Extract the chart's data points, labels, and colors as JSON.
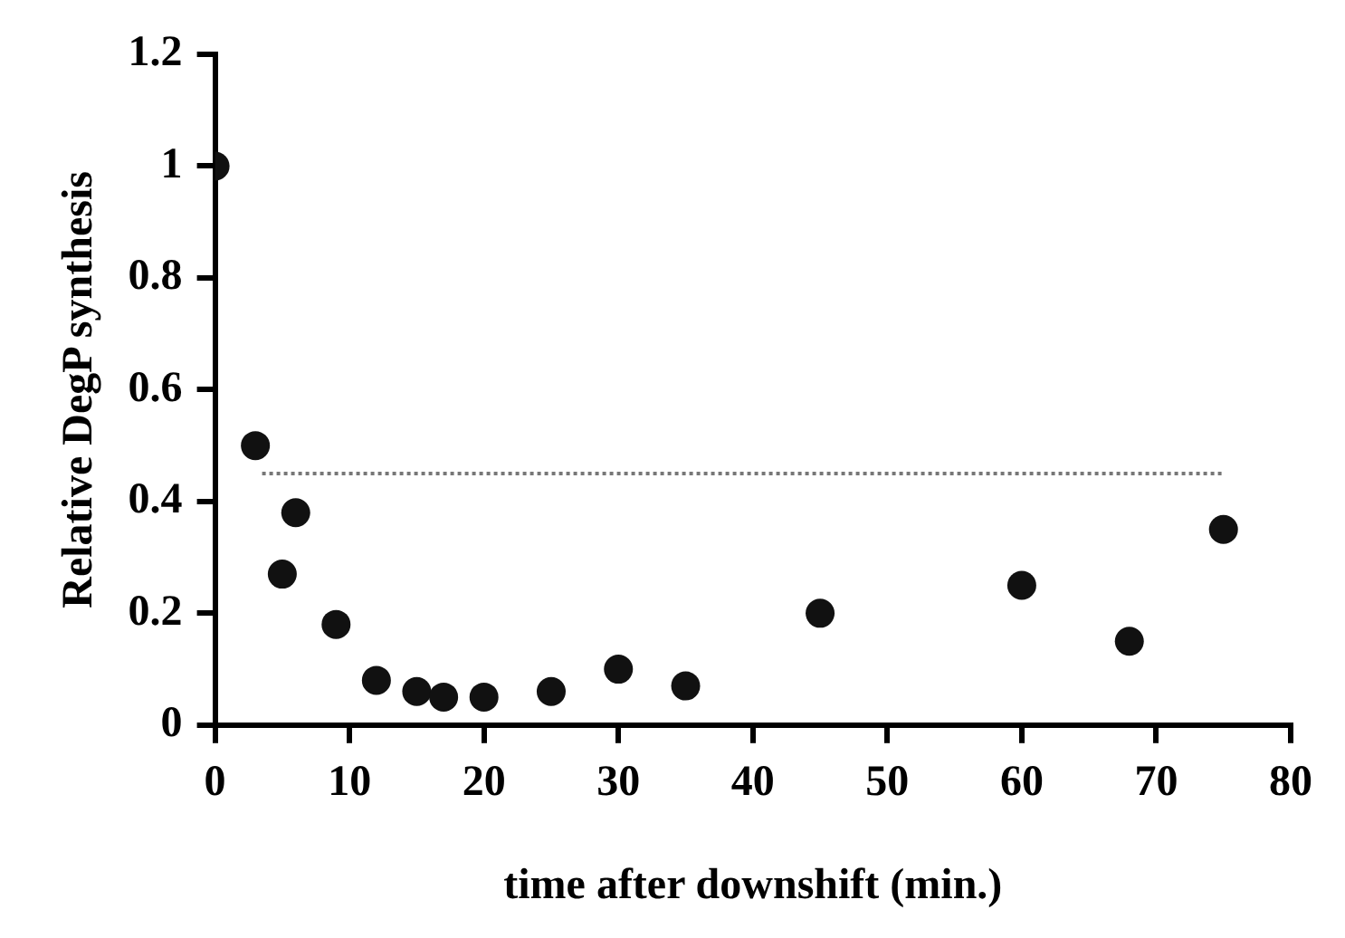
{
  "chart_data": {
    "type": "scatter",
    "xlabel": "time after downshift (min.)",
    "ylabel": "Relative DegP synthesis",
    "xlim": [
      0,
      80
    ],
    "xticks": [
      0,
      10,
      20,
      30,
      40,
      50,
      60,
      70,
      80
    ],
    "ylim": [
      0,
      1.2
    ],
    "yticks": [
      0,
      0.2,
      0.4,
      0.6,
      0.8,
      1,
      1.2
    ],
    "grid": false,
    "legend": false,
    "marker": "circle",
    "series": [
      {
        "type": "scatter",
        "color": "#111111",
        "x": [
          0,
          3,
          5,
          6,
          9,
          12,
          15,
          17,
          20,
          25,
          30,
          35,
          45,
          60,
          68,
          75
        ],
        "values": [
          1.0,
          0.5,
          0.27,
          0.38,
          0.18,
          0.08,
          0.06,
          0.05,
          0.05,
          0.06,
          0.1,
          0.07,
          0.2,
          0.25,
          0.15,
          0.35
        ]
      },
      {
        "type": "line",
        "color": "#777777",
        "line_style": "dotted",
        "marker": "none",
        "x": [
          3.5,
          75
        ],
        "values": [
          0.45,
          0.45
        ]
      }
    ]
  }
}
